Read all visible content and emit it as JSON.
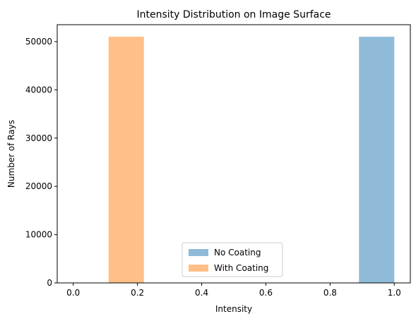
{
  "chart_data": {
    "type": "bar",
    "title": "Intensity Distribution on Image Surface",
    "xlabel": "Intensity",
    "ylabel": "Number of Rays",
    "xlim": [
      -0.05,
      1.05
    ],
    "ylim": [
      0,
      53500
    ],
    "x_ticks": [
      0.0,
      0.2,
      0.4,
      0.6,
      0.8,
      1.0
    ],
    "x_tick_labels": [
      "0.0",
      "0.2",
      "0.4",
      "0.6",
      "0.8",
      "1.0"
    ],
    "y_ticks": [
      0,
      10000,
      20000,
      30000,
      40000,
      50000
    ],
    "y_tick_labels": [
      "0",
      "10000",
      "20000",
      "30000",
      "40000",
      "50000"
    ],
    "grid": false,
    "legend_position": "bottom-center",
    "series": [
      {
        "name": "No Coating",
        "color": "#1f77b4",
        "opacity": 0.5,
        "bins": [
          {
            "x0": 0.89,
            "x1": 1.0,
            "value": 51000
          }
        ]
      },
      {
        "name": "With Coating",
        "color": "#ff7f0e",
        "opacity": 0.5,
        "bins": [
          {
            "x0": 0.11,
            "x1": 0.22,
            "value": 51000
          }
        ]
      }
    ]
  }
}
